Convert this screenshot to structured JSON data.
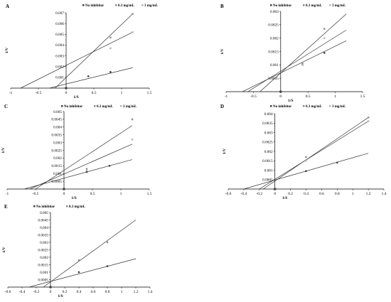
{
  "chart_data": [
    {
      "type": "line",
      "panel_label": "A",
      "legend": [
        "No inhibitor",
        "0.3 mg/mL",
        "3 mg/mL"
      ],
      "xlabel": "1/S",
      "ylabel": "1/V",
      "xlim": [
        -1,
        1.5
      ],
      "ylim": [
        0,
        0.007
      ],
      "xticks": [
        -1,
        -0.5,
        0,
        0.5,
        1,
        1.5
      ],
      "xtick_labels": [
        "-1",
        "-0.5",
        "0",
        "0.5",
        "1",
        "1.5"
      ],
      "yticks": [
        0.001,
        0.002,
        0.003,
        0.004,
        0.005,
        0.006,
        0.007
      ],
      "ytick_labels": [
        "0.001",
        "0.002",
        "0.003",
        "0.004",
        "0.005",
        "0.006",
        "0.007"
      ],
      "lines": [
        {
          "x0": -0.2,
          "y0": 0,
          "x1": 1.2,
          "y1": 0.0069
        },
        {
          "x0": -0.82,
          "y0": 0,
          "x1": 1.2,
          "y1": 0.0052
        },
        {
          "x0": -0.3,
          "y0": 0,
          "x1": 1.2,
          "y1": 0.0019
        }
      ],
      "series": [
        {
          "name": "No inhibitor",
          "x": [
            0.4,
            0.8
          ],
          "y": [
            0.0011,
            0.0015
          ]
        },
        {
          "name": "0.3 mg/mL",
          "x": [
            0.8,
            1.2
          ],
          "y": [
            0.0047,
            0.0069
          ]
        },
        {
          "name": "3 mg/mL",
          "x": [
            0.8,
            1.2
          ],
          "y": [
            0.0037,
            0.0052
          ]
        }
      ]
    },
    {
      "type": "line",
      "panel_label": "B",
      "legend": [
        "No inhibitor",
        "0.3 mg/mL",
        "3 mg/mL"
      ],
      "xlabel": "1/S",
      "ylabel": "1/V",
      "xlim": [
        -1,
        1.5
      ],
      "ylim": [
        0,
        0.003
      ],
      "xticks": [
        -1,
        -0.5,
        0,
        0.5,
        1,
        1.5
      ],
      "xtick_labels": [
        "-1",
        "-0.5",
        "0",
        "0.5",
        "1",
        "1.5"
      ],
      "yticks": [
        0.0005,
        0.001,
        0.0015,
        0.002,
        0.0025,
        0.003
      ],
      "ytick_labels": [
        "0.0005",
        "0.001",
        "0.0015",
        "0.002",
        "0.0025",
        "0.003"
      ],
      "lines": [
        {
          "x0": -0.38,
          "y0": 0,
          "x1": 1.2,
          "y1": 0.0029
        },
        {
          "x0": -0.6,
          "y0": 0,
          "x1": 1.2,
          "y1": 0.0023
        },
        {
          "x0": -0.7,
          "y0": 0,
          "x1": 1.2,
          "y1": 0.0019
        }
      ],
      "series": [
        {
          "name": "No inhibitor",
          "x": [
            0.4,
            0.8
          ],
          "y": [
            0.001,
            0.00145
          ]
        },
        {
          "name": "0.3 mg/mL",
          "x": [
            0.4,
            0.8
          ],
          "y": [
            0.00105,
            0.00235
          ]
        },
        {
          "name": "3 mg/mL",
          "x": [
            0.4,
            0.8
          ],
          "y": [
            0.001,
            0.002
          ]
        }
      ]
    },
    {
      "type": "line",
      "panel_label": "C",
      "legend": [
        "No inhibitor",
        "0.3 mg/mL",
        "3 mg/mL"
      ],
      "xlabel": "1/S",
      "ylabel": "1/V",
      "xlim": [
        -1,
        1.5
      ],
      "ylim": [
        0,
        0.005
      ],
      "xticks": [
        -1,
        -0.5,
        0,
        0.5,
        1,
        1.5
      ],
      "xtick_labels": [
        "-1",
        "-0.5",
        "0",
        "0.5",
        "1",
        "1.5"
      ],
      "yticks": [
        0.0005,
        0.001,
        0.0015,
        0.002,
        0.0025,
        0.003,
        0.0035,
        0.004,
        0.0045,
        0.005
      ],
      "ytick_labels": [
        "0.0005",
        "0.001",
        "0.0015",
        "0.002",
        "0.0025",
        "0.003",
        "0.0035",
        "0.004",
        "0.0045",
        "0.005"
      ],
      "lines": [
        {
          "x0": -0.5,
          "y0": 0,
          "x1": 1.2,
          "y1": 0.0041
        },
        {
          "x0": -0.6,
          "y0": 0,
          "x1": 1.2,
          "y1": 0.0029
        },
        {
          "x0": -0.7,
          "y0": 0,
          "x1": 1.2,
          "y1": 0.0019
        }
      ],
      "series": [
        {
          "name": "No inhibitor",
          "x": [
            0.4,
            0.8
          ],
          "y": [
            0.0011,
            0.0015
          ]
        },
        {
          "name": "0.3 mg/mL",
          "x": [
            0.4,
            1.2
          ],
          "y": [
            0.0013,
            0.0045
          ]
        },
        {
          "name": "3 mg/mL",
          "x": [
            0.4,
            1.2
          ],
          "y": [
            0.0012,
            0.0032
          ]
        }
      ]
    },
    {
      "type": "line",
      "panel_label": "D",
      "legend": [
        "No inhibitor",
        "0.3 mg/mL",
        "3 mg/mL"
      ],
      "xlabel": "1/S",
      "ylabel": "1/V",
      "xlim": [
        -0.6,
        1.4
      ],
      "ylim": [
        0,
        0.004
      ],
      "xticks": [
        -0.6,
        -0.4,
        -0.2,
        0,
        0.2,
        0.4,
        0.6,
        0.8,
        1,
        1.2,
        1.4
      ],
      "xtick_labels": [
        "-0.6",
        "-0.4",
        "-0.2",
        "0",
        "0.2",
        "0.4",
        "0.6",
        "0.8",
        "1",
        "1.2",
        "1.4"
      ],
      "yticks": [
        0.0005,
        0.001,
        0.0015,
        0.002,
        0.0025,
        0.003,
        0.0035,
        0.004
      ],
      "ytick_labels": [
        "0.0005",
        "0.001",
        "0.0015",
        "0.002",
        "0.0025",
        "0.003",
        "0.0035",
        "0.004"
      ],
      "lines": [
        {
          "x0": -0.15,
          "y0": 0,
          "x1": 1.2,
          "y1": 0.0038
        },
        {
          "x0": -0.2,
          "y0": 0,
          "x1": 1.2,
          "y1": 0.0036
        },
        {
          "x0": -0.4,
          "y0": 0,
          "x1": 1.2,
          "y1": 0.0019
        }
      ],
      "series": [
        {
          "name": "No inhibitor",
          "x": [
            0.4,
            0.8
          ],
          "y": [
            0.00095,
            0.0014
          ]
        },
        {
          "name": "0.3 mg/mL",
          "x": [
            0.4,
            1.2
          ],
          "y": [
            0.0017,
            0.0038
          ]
        },
        {
          "name": "3 mg/mL",
          "x": [
            0.4,
            1.2
          ],
          "y": [
            0.0015,
            0.0036
          ]
        }
      ]
    },
    {
      "type": "line",
      "panel_label": "E",
      "legend": [
        "No inhibitor",
        "0.3 mg/mL"
      ],
      "xlabel": "1/S",
      "ylabel": "1/V",
      "xlim": [
        -0.6,
        1.4
      ],
      "ylim": [
        0,
        0.005
      ],
      "xticks": [
        -0.6,
        -0.4,
        -0.2,
        0,
        0.2,
        0.4,
        0.6,
        0.8,
        1,
        1.2,
        1.4
      ],
      "xtick_labels": [
        "-0.6",
        "-0.4",
        "-0.2",
        "0",
        "0.2",
        "0.4",
        "0.6",
        "0.8",
        "1",
        "1.2",
        "1.4"
      ],
      "yticks": [
        0.0005,
        0.001,
        0.0015,
        0.002,
        0.0025,
        0.003,
        0.0035,
        0.004,
        0.0045,
        0.005
      ],
      "ytick_labels": [
        "0.0005",
        "0.001",
        "0.0015",
        "0.002",
        "0.0025",
        "0.003",
        "0.0035",
        "0.004",
        "0.0045",
        "0.005"
      ],
      "lines": [
        {
          "x0": -0.1,
          "y0": 0,
          "x1": 1.2,
          "y1": 0.0045
        },
        {
          "x0": -0.3,
          "y0": 0,
          "x1": 1.2,
          "y1": 0.0019
        }
      ],
      "series": [
        {
          "name": "No inhibitor",
          "x": [
            0.4,
            0.8
          ],
          "y": [
            0.001,
            0.0014
          ]
        },
        {
          "name": "0.3 mg/mL",
          "x": [
            0.4,
            0.8
          ],
          "y": [
            0.0018,
            0.003
          ]
        }
      ]
    }
  ]
}
